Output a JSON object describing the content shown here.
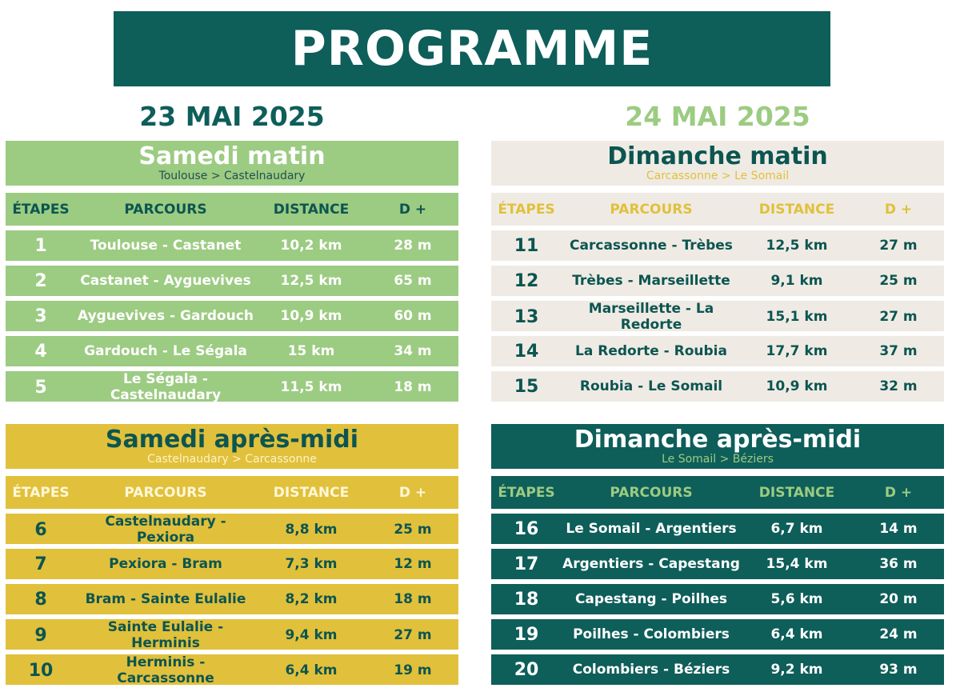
{
  "title": "PROGRAMME",
  "days": [
    {
      "date": "23 MAI 2025",
      "color": "#0e5e5a"
    },
    {
      "date": "24 MAI 2025",
      "color": "#9ccb82"
    }
  ],
  "columns": {
    "etapes": "ÉTAPES",
    "parcours": "PARCOURS",
    "distance": "DISTANCE",
    "dplus": "D +"
  },
  "panels": [
    {
      "title": "Samedi matin",
      "route": "Toulouse > Castelnaudary",
      "stages": [
        {
          "num": "1",
          "route": "Toulouse - Castanet",
          "distance": "10,2 km",
          "dplus": "28 m"
        },
        {
          "num": "2",
          "route": "Castanet - Ayguevives",
          "distance": "12,5 km",
          "dplus": "65 m"
        },
        {
          "num": "3",
          "route": "Ayguevives - Gardouch",
          "distance": "10,9 km",
          "dplus": "60 m"
        },
        {
          "num": "4",
          "route": "Gardouch - Le Ségala",
          "distance": "15 km",
          "dplus": "34 m"
        },
        {
          "num": "5",
          "route": "Le Ségala - Castelnaudary",
          "distance": "11,5 km",
          "dplus": "18 m"
        }
      ]
    },
    {
      "title": "Dimanche matin",
      "route": "Carcassonne > Le Somail",
      "stages": [
        {
          "num": "11",
          "route": "Carcassonne - Trèbes",
          "distance": "12,5 km",
          "dplus": "27 m"
        },
        {
          "num": "12",
          "route": "Trèbes - Marseillette",
          "distance": "9,1 km",
          "dplus": "25 m"
        },
        {
          "num": "13",
          "route": "Marseillette - La Redorte",
          "distance": "15,1 km",
          "dplus": "27 m"
        },
        {
          "num": "14",
          "route": "La Redorte - Roubia",
          "distance": "17,7 km",
          "dplus": "37 m"
        },
        {
          "num": "15",
          "route": "Roubia - Le Somail",
          "distance": "10,9 km",
          "dplus": "32 m"
        }
      ]
    },
    {
      "title": "Samedi après-midi",
      "route": "Castelnaudary > Carcassonne",
      "stages": [
        {
          "num": "6",
          "route": "Castelnaudary - Pexiora",
          "distance": "8,8 km",
          "dplus": "25 m"
        },
        {
          "num": "7",
          "route": "Pexiora - Bram",
          "distance": "7,3 km",
          "dplus": "12 m"
        },
        {
          "num": "8",
          "route": "Bram - Sainte Eulalie",
          "distance": "8,2 km",
          "dplus": "18 m"
        },
        {
          "num": "9",
          "route": "Sainte Eulalie - Herminis",
          "distance": "9,4 km",
          "dplus": "27 m"
        },
        {
          "num": "10",
          "route": "Herminis - Carcassonne",
          "distance": "6,4 km",
          "dplus": "19 m"
        }
      ]
    },
    {
      "title": "Dimanche après-midi",
      "route": "Le Somail > Béziers",
      "stages": [
        {
          "num": "16",
          "route": "Le Somail - Argentiers",
          "distance": "6,7 km",
          "dplus": "14 m"
        },
        {
          "num": "17",
          "route": "Argentiers - Capestang",
          "distance": "15,4 km",
          "dplus": "36 m"
        },
        {
          "num": "18",
          "route": "Capestang - Poilhes",
          "distance": "5,6 km",
          "dplus": "20 m"
        },
        {
          "num": "19",
          "route": "Poilhes - Colombiers",
          "distance": "6,4 km",
          "dplus": "24 m"
        },
        {
          "num": "20",
          "route": "Colombiers - Béziers",
          "distance": "9,2 km",
          "dplus": "93 m"
        }
      ]
    }
  ]
}
